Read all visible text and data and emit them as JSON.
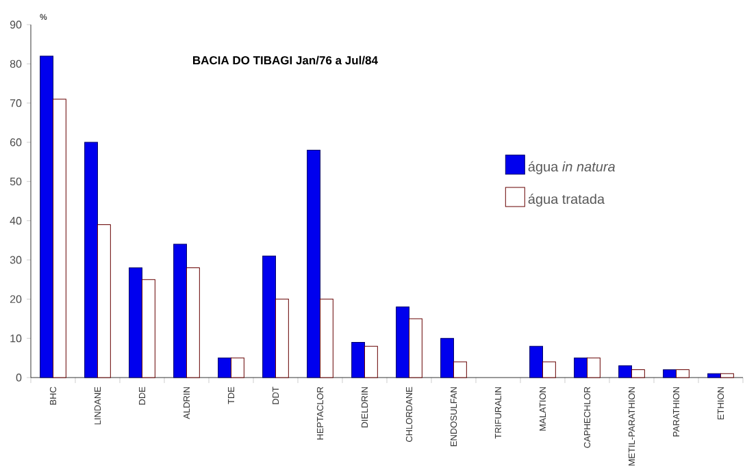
{
  "chart_data": {
    "type": "bar",
    "title": "BACIA DO TIBAGI  Jan/76 a Jul/84",
    "ylabel": "%",
    "categories": [
      "BHC",
      "LINDANE",
      "DDE",
      "ALDRIN",
      "TDE",
      "DDT",
      "HEPTACLOR",
      "DIELDRIN",
      "CHLORDANE",
      "ENDOSULFAN",
      "TRIFURALIN",
      "MALATION",
      "CAPHECHLOR",
      "METIL-PARATHION",
      "PARATHION",
      "ETHION"
    ],
    "series": [
      {
        "name": "água *in natura*",
        "color": "#0000ee",
        "values": [
          82,
          60,
          28,
          34,
          5,
          31,
          58,
          9,
          18,
          10,
          0,
          8,
          5,
          3,
          2,
          1
        ]
      },
      {
        "name": "água tratada",
        "color": "#ffffff",
        "values": [
          71,
          39,
          25,
          28,
          5,
          20,
          20,
          8,
          15,
          4,
          0,
          4,
          5,
          2,
          2,
          1
        ]
      }
    ],
    "ylim": [
      0,
      90
    ],
    "yticks": [
      0,
      10,
      20,
      30,
      40,
      50,
      60,
      70,
      80,
      90
    ],
    "grid": false,
    "legend": "right"
  }
}
